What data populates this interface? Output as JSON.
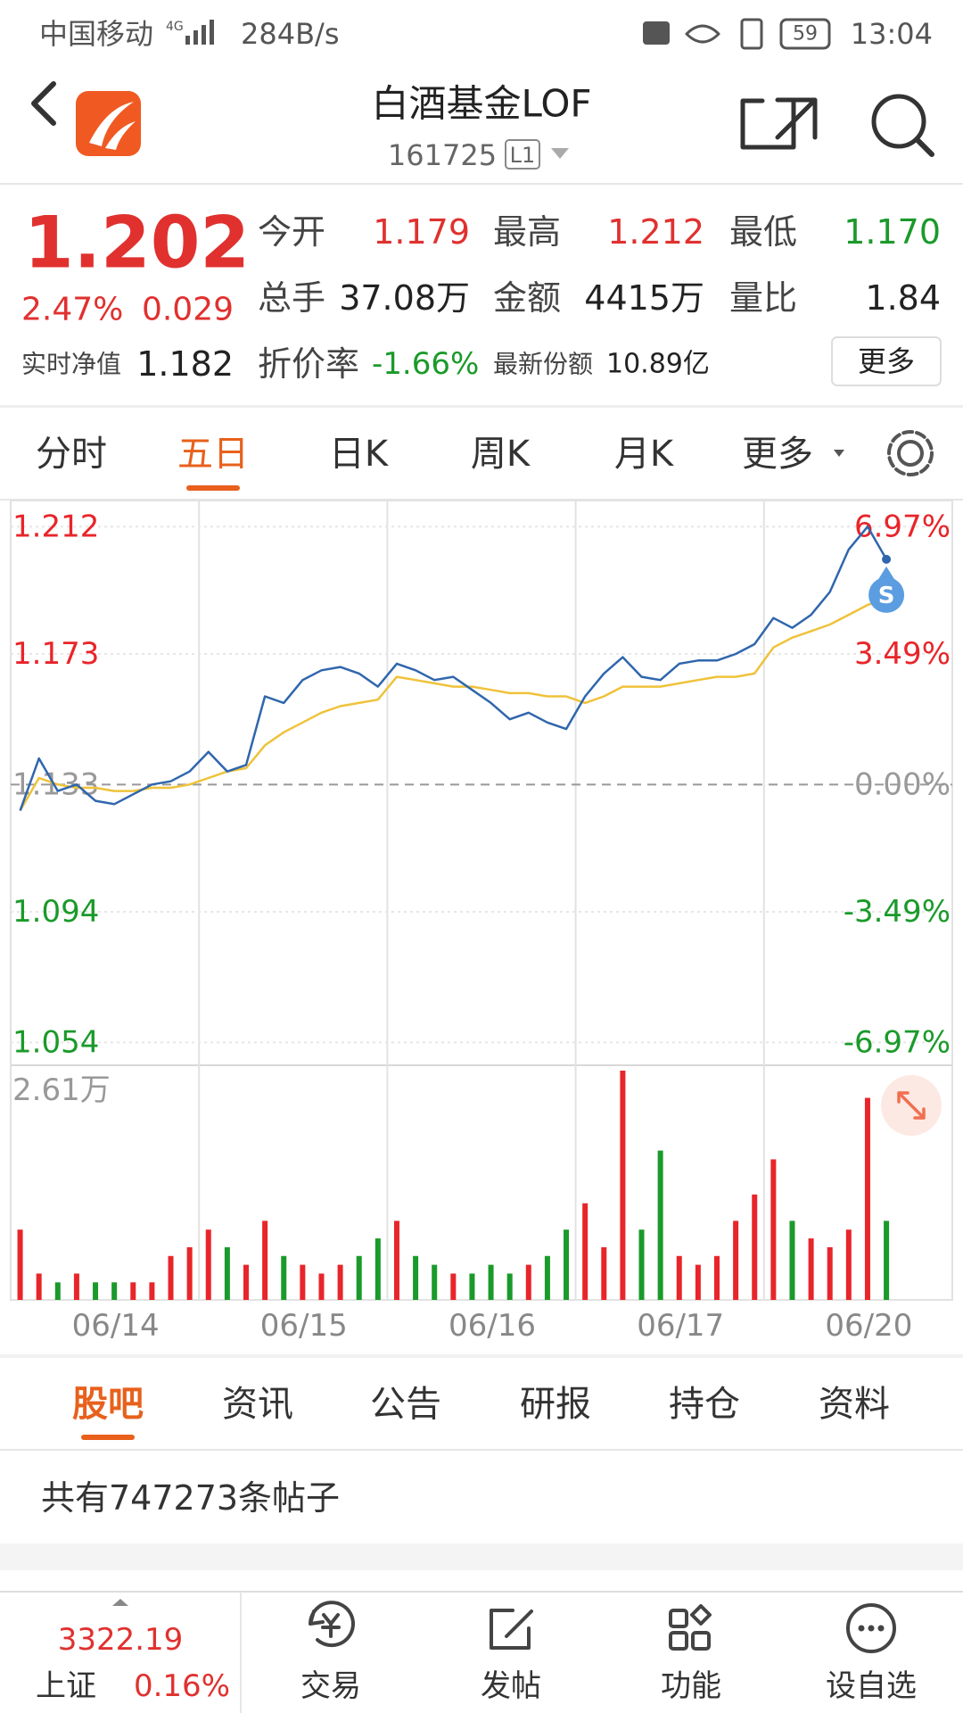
{
  "status_bar": {
    "carrier": "中国移动",
    "network": "4G",
    "speed": "284B/s",
    "battery": "59",
    "time": "13:04"
  },
  "header": {
    "title": "白酒基金LOF",
    "code": "161725",
    "level": "L1"
  },
  "quote": {
    "price": "1.202",
    "change_pct": "2.47%",
    "change": "0.029",
    "nav_label": "实时净值",
    "nav": "1.182",
    "up_color": "#e0312f",
    "down_color": "#1a9a2a",
    "flat_color": "#222222",
    "fields": [
      {
        "label": "今开",
        "value": "1.179",
        "color": "#e0312f"
      },
      {
        "label": "最高",
        "value": "1.212",
        "color": "#e0312f"
      },
      {
        "label": "最低",
        "value": "1.170",
        "color": "#1a9a2a"
      },
      {
        "label": "总手",
        "value": "37.08万",
        "color": "#222222"
      },
      {
        "label": "金额",
        "value": "4415万",
        "color": "#222222"
      },
      {
        "label": "量比",
        "value": "1.84",
        "color": "#222222"
      },
      {
        "label": "折价率",
        "value": "-1.66%",
        "color": "#1a9a2a"
      },
      {
        "label": "最新份额",
        "value": "10.89亿",
        "color": "#222222"
      }
    ],
    "more": "更多"
  },
  "tabs": {
    "items": [
      "分时",
      "五日",
      "日K",
      "周K",
      "月K",
      "更多"
    ],
    "active": 1
  },
  "chart_data": {
    "type": "line",
    "categories": [
      "06/14",
      "06/15",
      "06/16",
      "06/17",
      "06/20"
    ],
    "price": [
      1.125,
      1.141,
      1.131,
      1.133,
      1.128,
      1.127,
      1.13,
      1.133,
      1.134,
      1.137,
      1.143,
      1.137,
      1.139,
      1.16,
      1.158,
      1.165,
      1.168,
      1.169,
      1.167,
      1.163,
      1.17,
      1.168,
      1.165,
      1.166,
      1.162,
      1.158,
      1.153,
      1.155,
      1.152,
      1.15,
      1.16,
      1.167,
      1.172,
      1.166,
      1.165,
      1.17,
      1.171,
      1.171,
      1.173,
      1.176,
      1.184,
      1.181,
      1.185,
      1.192,
      1.205,
      1.212,
      1.202
    ],
    "average": [
      1.125,
      1.135,
      1.133,
      1.132,
      1.132,
      1.131,
      1.131,
      1.132,
      1.132,
      1.133,
      1.135,
      1.137,
      1.138,
      1.145,
      1.149,
      1.152,
      1.155,
      1.157,
      1.158,
      1.159,
      1.166,
      1.165,
      1.164,
      1.163,
      1.163,
      1.162,
      1.161,
      1.161,
      1.16,
      1.16,
      1.158,
      1.16,
      1.163,
      1.163,
      1.163,
      1.164,
      1.165,
      1.166,
      1.166,
      1.167,
      1.175,
      1.178,
      1.18,
      1.182,
      1.185,
      1.188,
      1.19
    ],
    "volume": [
      0.8,
      0.3,
      0.2,
      0.3,
      0.2,
      0.2,
      0.2,
      0.2,
      0.5,
      0.6,
      0.8,
      0.6,
      0.4,
      0.9,
      0.5,
      0.4,
      0.3,
      0.4,
      0.5,
      0.7,
      0.9,
      0.5,
      0.4,
      0.3,
      0.3,
      0.4,
      0.3,
      0.4,
      0.5,
      0.8,
      1.1,
      0.6,
      2.61,
      0.8,
      1.7,
      0.5,
      0.4,
      0.5,
      0.9,
      1.2,
      1.6,
      0.9,
      0.7,
      0.6,
      0.8,
      2.3,
      0.9
    ],
    "ylim": [
      1.047,
      1.22
    ],
    "yticks": [
      1.212,
      1.173,
      1.133,
      1.094,
      1.054
    ],
    "ytick_pct": [
      "6.97%",
      "3.49%",
      "0.00%",
      "-3.49%",
      "-6.97%"
    ],
    "volume_ylim": [
      0,
      2.61
    ],
    "volume_label": "2.61万",
    "marker_label": "S",
    "price_color": "#2f66ad",
    "average_color": "#efc23a",
    "up_color": "#e8252a",
    "down_color": "#1a9a2a",
    "flat_color": "#999999"
  },
  "feed_tabs": {
    "items": [
      "股吧",
      "资讯",
      "公告",
      "研报",
      "持仓",
      "资料"
    ],
    "active": 0
  },
  "post_count": "共有747273条帖子",
  "bottom_bar": {
    "index_value": "3322.19",
    "index_name": "上证",
    "index_change": "0.16%",
    "items": [
      "交易",
      "发帖",
      "功能",
      "设自选"
    ]
  }
}
